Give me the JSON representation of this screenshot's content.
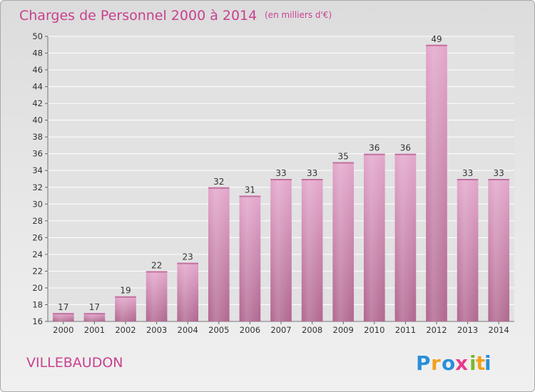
{
  "chart_data": {
    "type": "bar",
    "title": "Charges de Personnel 2000 à 2014",
    "subtitle": "(en milliers d'€)",
    "categories": [
      "2000",
      "2001",
      "2002",
      "2003",
      "2004",
      "2005",
      "2006",
      "2007",
      "2008",
      "2009",
      "2010",
      "2011",
      "2012",
      "2013",
      "2014"
    ],
    "values": [
      17,
      17,
      19,
      22,
      23,
      32,
      31,
      33,
      33,
      35,
      36,
      36,
      49,
      33,
      33
    ],
    "ylim": [
      16,
      50
    ],
    "yticks": [
      16,
      18,
      20,
      22,
      24,
      26,
      28,
      30,
      32,
      34,
      36,
      38,
      40,
      42,
      44,
      46,
      48,
      50
    ],
    "grid": true,
    "bar_color": "#d585b5"
  },
  "place": "VILLEBAUDON",
  "brand": {
    "letters": [
      "P",
      "r",
      "o",
      "x",
      "i",
      "t",
      "i"
    ],
    "colors": [
      "#2a8fd8",
      "#f0a020",
      "#2a8fd8",
      "#e83a8a",
      "#7ab830",
      "#f0a020",
      "#2a8fd8"
    ]
  }
}
